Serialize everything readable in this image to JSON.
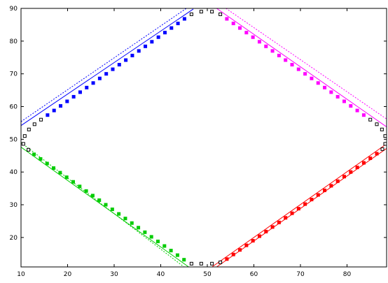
{
  "chart_data": {
    "type": "scatter",
    "xlim": [
      10,
      88.5
    ],
    "ylim": [
      11,
      90
    ],
    "x_ticks": [
      10,
      20,
      30,
      40,
      50,
      60,
      70,
      80
    ],
    "y_ticks": [
      20,
      30,
      40,
      50,
      60,
      70,
      80,
      90
    ],
    "grid": false,
    "legend": "none",
    "colors": {
      "points": "#000000",
      "upper_left": "#0000ff",
      "upper_right": "#ff00ff",
      "lower_left": "#00cc00",
      "lower_right": "#ff0000"
    },
    "series": [
      {
        "values": [
          [
            51.0,
            89.0
          ],
          [
            48.7,
            89.0
          ],
          [
            52.8,
            88.2
          ],
          [
            46.6,
            88.2
          ],
          [
            54.2,
            86.8
          ],
          [
            45.1,
            86.8
          ],
          [
            55.6,
            85.4
          ],
          [
            43.7,
            85.4
          ],
          [
            57.0,
            84.0
          ],
          [
            42.3,
            84.0
          ],
          [
            58.4,
            82.6
          ],
          [
            40.9,
            82.6
          ],
          [
            59.8,
            81.2
          ],
          [
            39.5,
            81.2
          ],
          [
            61.2,
            79.8
          ],
          [
            38.1,
            79.8
          ],
          [
            62.6,
            78.4
          ],
          [
            36.7,
            78.4
          ],
          [
            64.0,
            77.0
          ],
          [
            35.3,
            77.0
          ],
          [
            65.4,
            75.6
          ],
          [
            33.9,
            75.6
          ],
          [
            66.8,
            74.2
          ],
          [
            32.5,
            74.2
          ],
          [
            68.2,
            72.8
          ],
          [
            31.1,
            72.8
          ],
          [
            69.6,
            71.4
          ],
          [
            29.7,
            71.4
          ],
          [
            71.0,
            70.0
          ],
          [
            28.3,
            70.0
          ],
          [
            72.4,
            68.6
          ],
          [
            26.9,
            68.6
          ],
          [
            73.8,
            67.2
          ],
          [
            25.5,
            67.2
          ],
          [
            75.2,
            65.8
          ],
          [
            24.1,
            65.8
          ],
          [
            76.6,
            64.4
          ],
          [
            22.7,
            64.4
          ],
          [
            78.0,
            63.0
          ],
          [
            21.3,
            63.0
          ],
          [
            79.4,
            61.6
          ],
          [
            19.9,
            61.6
          ],
          [
            80.8,
            60.2
          ],
          [
            18.5,
            60.2
          ],
          [
            82.2,
            58.8
          ],
          [
            17.1,
            58.8
          ],
          [
            83.6,
            57.4
          ],
          [
            15.7,
            57.4
          ],
          [
            85.0,
            56.0
          ],
          [
            14.3,
            56.0
          ],
          [
            86.4,
            54.6
          ],
          [
            12.9,
            54.6
          ],
          [
            87.5,
            53.0
          ],
          [
            11.7,
            53.0
          ],
          [
            88.2,
            51.0
          ],
          [
            10.8,
            51.0
          ],
          [
            88.2,
            48.6
          ],
          [
            10.5,
            48.6
          ],
          [
            87.6,
            47.0
          ],
          [
            11.6,
            46.8
          ],
          [
            86.4,
            45.6
          ],
          [
            12.8,
            45.4
          ],
          [
            85.0,
            44.2
          ],
          [
            14.2,
            44.0
          ],
          [
            83.6,
            42.8
          ],
          [
            15.6,
            42.6
          ],
          [
            82.2,
            41.4
          ],
          [
            17.0,
            41.2
          ],
          [
            80.8,
            40.0
          ],
          [
            18.4,
            39.8
          ],
          [
            79.4,
            38.6
          ],
          [
            19.8,
            38.4
          ],
          [
            78.0,
            37.2
          ],
          [
            21.2,
            37.0
          ],
          [
            76.6,
            35.8
          ],
          [
            22.6,
            35.6
          ],
          [
            75.2,
            34.4
          ],
          [
            24.0,
            34.2
          ],
          [
            73.8,
            33.0
          ],
          [
            25.4,
            32.8
          ],
          [
            72.4,
            31.6
          ],
          [
            26.8,
            31.4
          ],
          [
            71.0,
            30.2
          ],
          [
            28.2,
            30.0
          ],
          [
            69.6,
            28.8
          ],
          [
            29.6,
            28.6
          ],
          [
            68.2,
            27.4
          ],
          [
            31.0,
            27.2
          ],
          [
            66.8,
            26.0
          ],
          [
            32.4,
            25.8
          ],
          [
            65.4,
            24.6
          ],
          [
            33.8,
            24.4
          ],
          [
            64.0,
            23.2
          ],
          [
            35.2,
            23.0
          ],
          [
            62.6,
            21.8
          ],
          [
            36.6,
            21.6
          ],
          [
            61.2,
            20.4
          ],
          [
            38.0,
            20.2
          ],
          [
            59.8,
            19.0
          ],
          [
            39.4,
            18.8
          ],
          [
            58.4,
            17.6
          ],
          [
            40.8,
            17.4
          ],
          [
            57.0,
            16.2
          ],
          [
            42.2,
            16.0
          ],
          [
            55.6,
            14.8
          ],
          [
            43.6,
            14.6
          ],
          [
            54.2,
            13.4
          ],
          [
            45.0,
            13.2
          ],
          [
            52.8,
            12.4
          ],
          [
            46.6,
            12.0
          ],
          [
            51.0,
            12.0
          ],
          [
            48.7,
            12.0
          ]
        ]
      }
    ],
    "lines": [
      {
        "color": "#0000ff",
        "dashed": false,
        "points": [
          [
            10,
            54.2
          ],
          [
            47,
            89.8
          ]
        ]
      },
      {
        "color": "#0000ff",
        "dashed": true,
        "points": [
          [
            10,
            55.4
          ],
          [
            45.5,
            90
          ]
        ]
      },
      {
        "color": "#ff00ff",
        "dashed": false,
        "points": [
          [
            52,
            90
          ],
          [
            88.5,
            53.8
          ]
        ]
      },
      {
        "color": "#ff00ff",
        "dashed": true,
        "points": [
          [
            54,
            90
          ],
          [
            88.5,
            56.2
          ]
        ]
      },
      {
        "color": "#00cc00",
        "dashed": false,
        "points": [
          [
            10,
            47.6
          ],
          [
            46,
            11
          ]
        ]
      },
      {
        "color": "#00cc00",
        "dashed": true,
        "points": [
          [
            10,
            49.0
          ],
          [
            45,
            11
          ]
        ]
      },
      {
        "color": "#ff0000",
        "dashed": false,
        "points": [
          [
            52,
            11
          ],
          [
            88.5,
            47.2
          ]
        ]
      },
      {
        "color": "#ff0000",
        "dashed": false,
        "points": [
          [
            51,
            11
          ],
          [
            88.5,
            48.6
          ]
        ]
      }
    ]
  }
}
